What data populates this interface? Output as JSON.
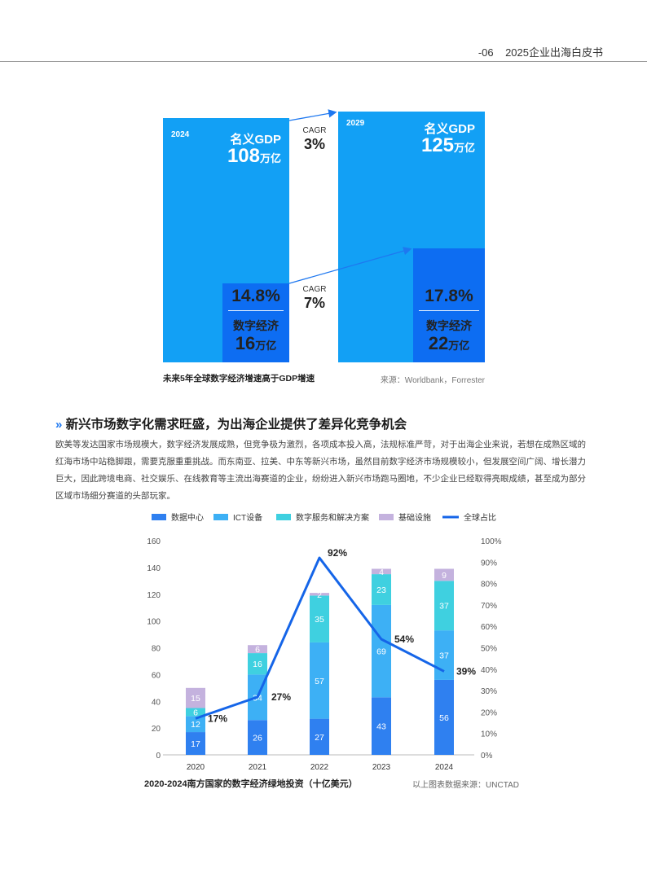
{
  "header": {
    "page_num": "-06",
    "doc_title": "2025企业出海白皮书"
  },
  "infographic": {
    "left": {
      "year": "2024",
      "gdp_label": "名义GDP",
      "gdp_value": "108",
      "gdp_unit": "万亿",
      "digital_share": "14.8%",
      "digital_label": "数字经济",
      "digital_value": "16",
      "digital_unit": "万亿"
    },
    "right": {
      "year": "2029",
      "gdp_label": "名义GDP",
      "gdp_value": "125",
      "gdp_unit": "万亿",
      "digital_share": "17.8%",
      "digital_label": "数字经济",
      "digital_value": "22",
      "digital_unit": "万亿"
    },
    "cagr_top": {
      "label": "CAGR",
      "value": "3%"
    },
    "cagr_bottom": {
      "label": "CAGR",
      "value": "7%"
    },
    "caption": "未来5年全球数字经济增速高于GDP增速",
    "source": "来源：Worldbank，Forrester",
    "colors": {
      "gdp": "#12a0f5",
      "digital": "#0d6df2"
    }
  },
  "section": {
    "title": "新兴市场数字化需求旺盛，为出海企业提供了差异化竞争机会",
    "icon": "double-chevron-right-icon",
    "body": "欧美等发达国家市场规模大，数字经济发展成熟，但竞争极为激烈，各项成本投入高，法规标准严苛，对于出海企业来说，若想在成熟区域的红海市场中站稳脚跟，需要克服重重挑战。而东南亚、拉美、中东等新兴市场，虽然目前数字经济市场规模较小，但发展空间广阔、增长潜力巨大，因此跨境电商、社交娱乐、在线教育等主流出海赛道的企业，纷纷进入新兴市场跑马圈地，不少企业已经取得亮眼成绩，甚至成为部分区域市场细分赛道的头部玩家。"
  },
  "chart_data": {
    "type": "bar",
    "stacked": true,
    "title": "2020-2024南方国家的数字经济绿地投资（十亿美元）",
    "source": "以上图表数据来源：UNCTAD",
    "categories": [
      "2020",
      "2021",
      "2022",
      "2023",
      "2024"
    ],
    "series": [
      {
        "name": "数据中心",
        "values": [
          17,
          26,
          27,
          43,
          56
        ],
        "color": "#2f80f0"
      },
      {
        "name": "ICT设备",
        "values": [
          12,
          34,
          57,
          69,
          37
        ],
        "color": "#3db0f5"
      },
      {
        "name": "数字服务和解决方案",
        "values": [
          6,
          16,
          35,
          23,
          37
        ],
        "color": "#3fd0e0"
      },
      {
        "name": "基础设施",
        "values": [
          15,
          6,
          2,
          4,
          9
        ],
        "color": "#c4b2de"
      }
    ],
    "line": {
      "name": "全球占比",
      "values": [
        17,
        27,
        92,
        54,
        39
      ],
      "labels": [
        "17%",
        "27%",
        "92%",
        "54%",
        "39%"
      ],
      "color": "#1565e8"
    },
    "ylim": [
      0,
      160
    ],
    "yticks": [
      0,
      20,
      40,
      60,
      80,
      100,
      120,
      140,
      160
    ],
    "y2lim": [
      0,
      100
    ],
    "y2ticks": [
      "0%",
      "10%",
      "20%",
      "30%",
      "40%",
      "50%",
      "60%",
      "70%",
      "80%",
      "90%",
      "100%"
    ],
    "legend_position": "top",
    "grid": false
  }
}
